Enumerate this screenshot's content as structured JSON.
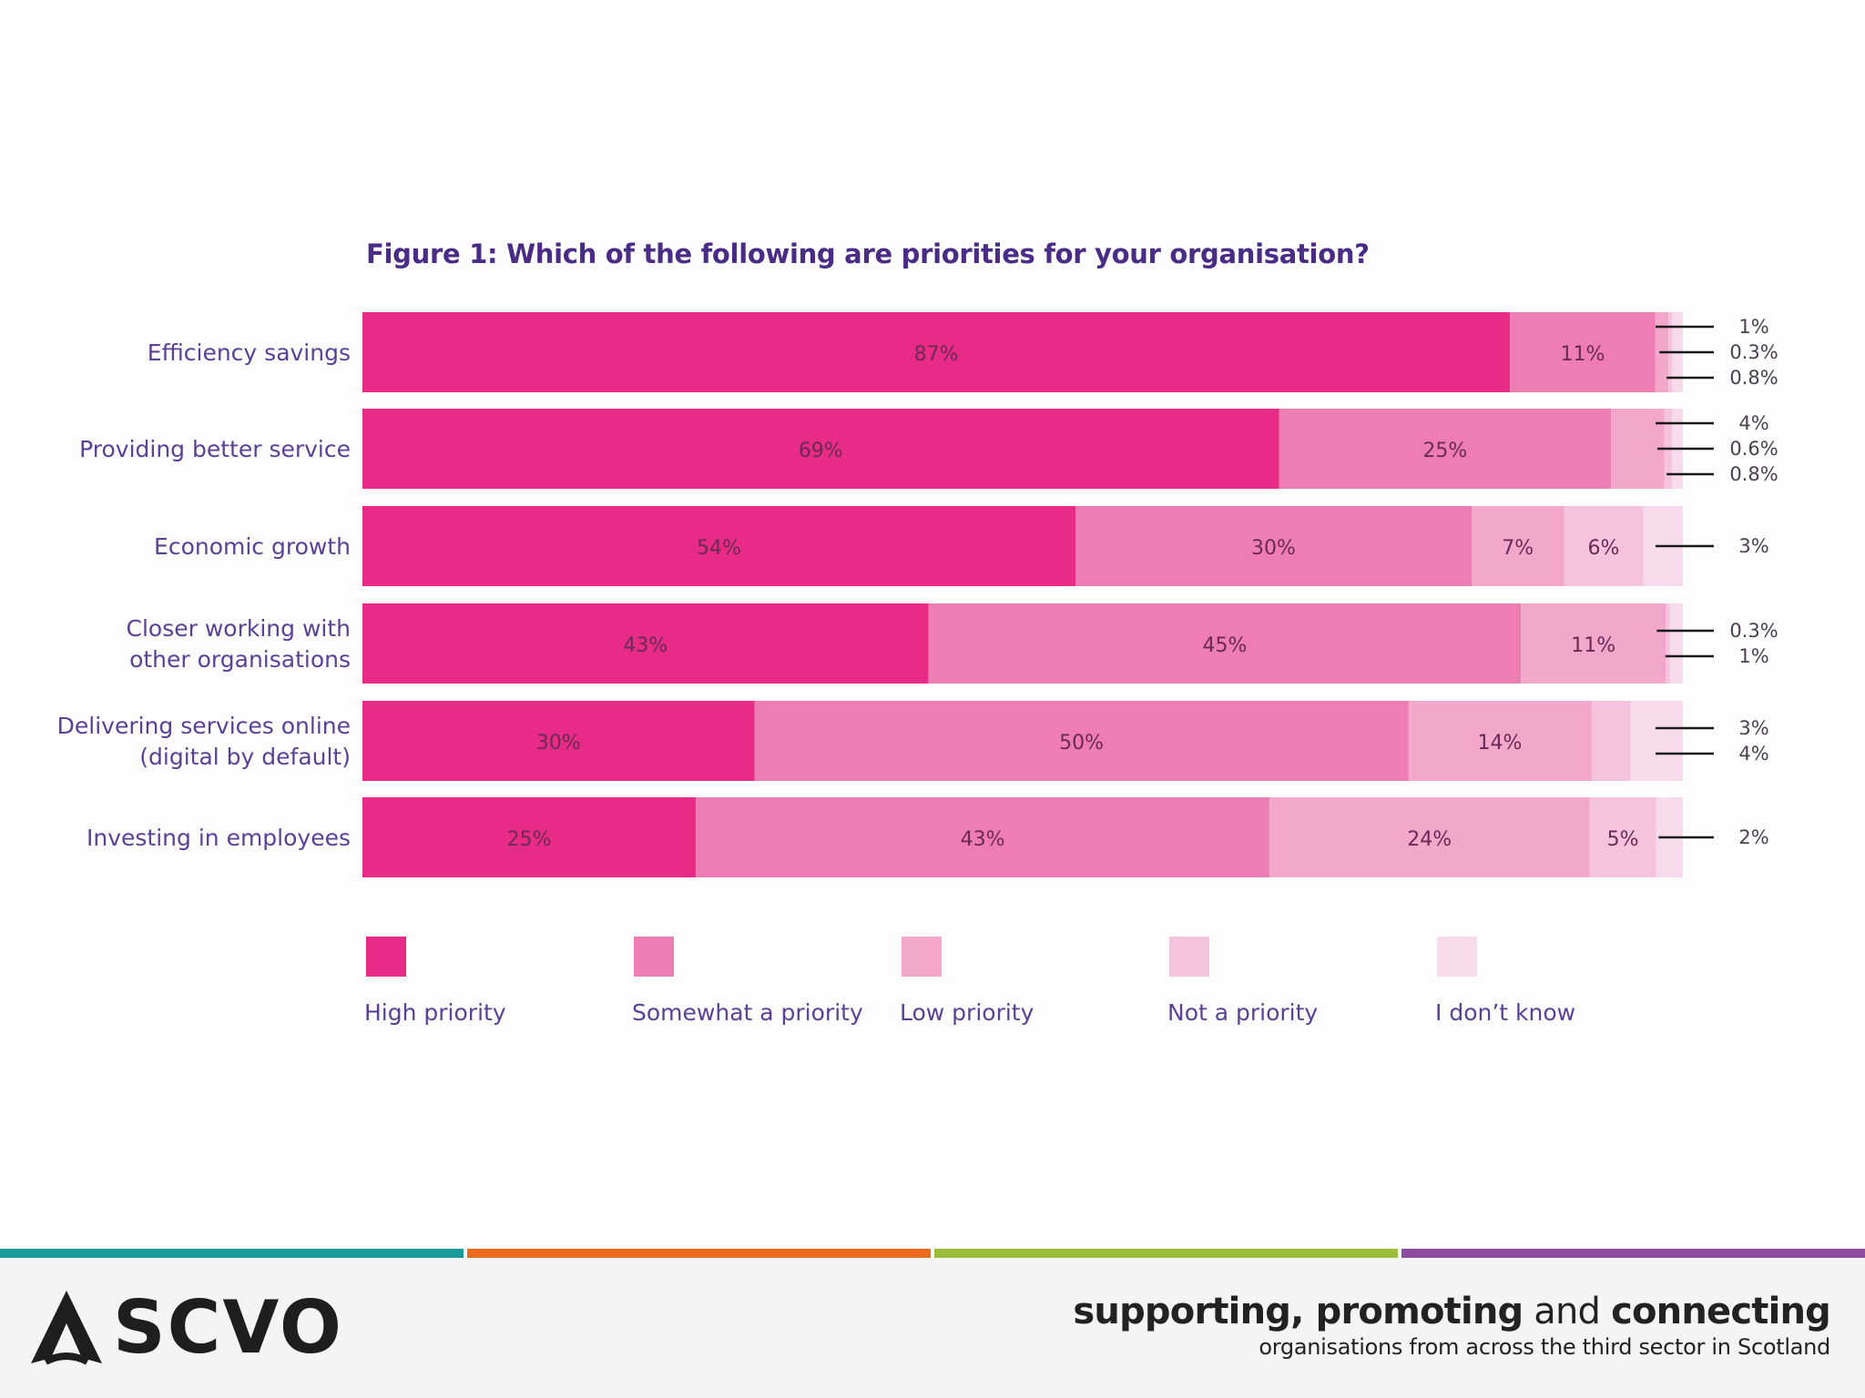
{
  "chart_data": {
    "type": "bar",
    "orientation": "horizontal",
    "stacked": true,
    "title": "Figure 1: Which of the following are priorities for your organisation?",
    "categories": [
      [
        "Efficiency savings"
      ],
      [
        "Providing better service"
      ],
      [
        "Economic growth"
      ],
      [
        "Closer working with",
        "other organisations"
      ],
      [
        "Delivering services online",
        "(digital by default)"
      ],
      [
        "Investing in employees"
      ]
    ],
    "series": [
      {
        "name": "High priority",
        "color": "#e82b87",
        "values": [
          87,
          69,
          54,
          43,
          30,
          25
        ],
        "labels": [
          "87%",
          "69%",
          "54%",
          "43%",
          "30%",
          "25%"
        ]
      },
      {
        "name": "Somewhat a priority",
        "color": "#ee7db3",
        "values": [
          11,
          25,
          30,
          45,
          50,
          43
        ],
        "labels": [
          "11%",
          "25%",
          "30%",
          "45%",
          "50%",
          "43%"
        ]
      },
      {
        "name": "Low priority",
        "color": "#f2a7cb",
        "values": [
          1,
          4,
          7,
          11,
          14,
          24
        ],
        "labels": [
          "1%",
          "4%",
          "7%",
          "11%",
          "14%",
          "24%"
        ]
      },
      {
        "name": "Not a priority",
        "color": "#f5c3dd",
        "values": [
          0.3,
          0.6,
          6,
          0.3,
          3,
          5
        ],
        "labels": [
          "0.3%",
          "0.6%",
          "6%",
          "0.3%",
          "3%",
          "5%"
        ]
      },
      {
        "name": "I don’t know",
        "color": "#f8dbea",
        "values": [
          0.8,
          0.8,
          3,
          1,
          4,
          2
        ],
        "labels": [
          "0.8%",
          "0.8%",
          "3%",
          "1%",
          "4%",
          "2%"
        ]
      }
    ],
    "xlim": [
      0,
      100
    ],
    "legend_position": "bottom"
  },
  "footer": {
    "logo_text": "SCVO",
    "tagline_bold1": "supporting, promoting",
    "tagline_and": " and ",
    "tagline_bold2": "connecting",
    "tagline_sub": "organisations from across the third sector in Scotland",
    "stripe_colors": [
      "#1b9a9a",
      "#ec6a1d",
      "#9cbd3b",
      "#8e4c9f"
    ]
  }
}
